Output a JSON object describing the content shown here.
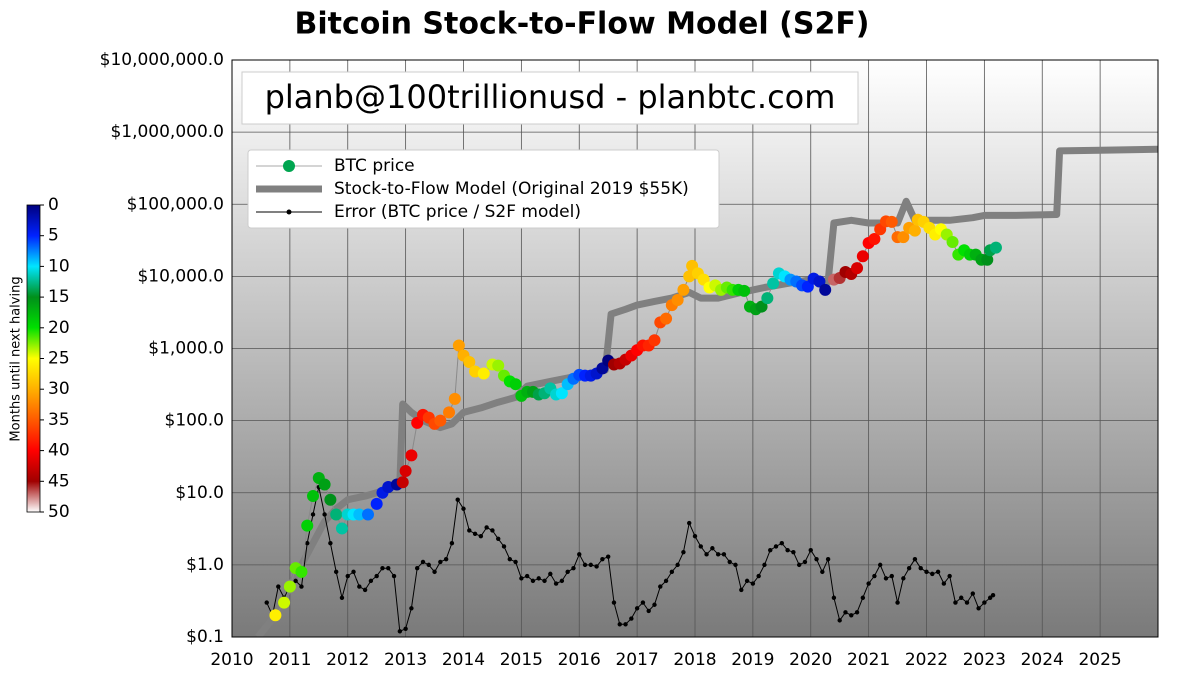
{
  "chart_data": {
    "type": "line",
    "title": "Bitcoin Stock-to-Flow Model (S2F)",
    "annotation": "planb@100trillionusd  -  planbtc.com",
    "log_y": true,
    "grid": true,
    "legend": "upper left",
    "xlim": [
      2010,
      2026
    ],
    "xticks": [
      2010,
      2011,
      2012,
      2013,
      2014,
      2015,
      2016,
      2017,
      2018,
      2019,
      2020,
      2021,
      2022,
      2023,
      2024,
      2025
    ],
    "ylim": [
      0.1,
      10000000
    ],
    "yticks": [
      {
        "value": 0.1,
        "label": "$0.1"
      },
      {
        "value": 1,
        "label": "$1.0"
      },
      {
        "value": 10,
        "label": "$10.0"
      },
      {
        "value": 100,
        "label": "$100.0"
      },
      {
        "value": 1000,
        "label": "$1,000.0"
      },
      {
        "value": 10000,
        "label": "$10,000.0"
      },
      {
        "value": 100000,
        "label": "$100,000.0"
      },
      {
        "value": 1000000,
        "label": "$1,000,000.0"
      },
      {
        "value": 10000000,
        "label": "$10,000,000.0"
      }
    ],
    "colorbar": {
      "label": "Months until next halving",
      "lim": [
        0,
        50
      ],
      "ticks": [
        0,
        5,
        10,
        15,
        20,
        25,
        30,
        35,
        40,
        45,
        50
      ],
      "colors": [
        "#00007f",
        "#0022ff",
        "#00e5ff",
        "#00901a",
        "#00e000",
        "#ffff00",
        "#ffb000",
        "#ff5a00",
        "#ff0000",
        "#a00000",
        "#ffffff"
      ]
    },
    "series": [
      {
        "name": "BTC price",
        "type": "scatter",
        "color": "#00a550",
        "x": [
          2010.75,
          2010.9,
          2011.0,
          2011.1,
          2011.2,
          2011.3,
          2011.4,
          2011.5,
          2011.6,
          2011.7,
          2011.8,
          2011.9,
          2012.0,
          2012.1,
          2012.2,
          2012.35,
          2012.5,
          2012.6,
          2012.7,
          2012.85,
          2012.95,
          2013.0,
          2013.1,
          2013.2,
          2013.3,
          2013.4,
          2013.5,
          2013.6,
          2013.75,
          2013.85,
          2013.92,
          2014.0,
          2014.1,
          2014.2,
          2014.35,
          2014.5,
          2014.6,
          2014.7,
          2014.8,
          2014.9,
          2015.0,
          2015.1,
          2015.2,
          2015.3,
          2015.4,
          2015.5,
          2015.6,
          2015.7,
          2015.8,
          2015.9,
          2016.0,
          2016.1,
          2016.2,
          2016.3,
          2016.4,
          2016.5,
          2016.6,
          2016.7,
          2016.8,
          2016.9,
          2017.0,
          2017.1,
          2017.2,
          2017.3,
          2017.4,
          2017.5,
          2017.6,
          2017.7,
          2017.8,
          2017.9,
          2017.95,
          2018.05,
          2018.15,
          2018.25,
          2018.35,
          2018.45,
          2018.55,
          2018.65,
          2018.75,
          2018.85,
          2018.95,
          2019.05,
          2019.15,
          2019.25,
          2019.35,
          2019.45,
          2019.55,
          2019.65,
          2019.75,
          2019.85,
          2019.95,
          2020.05,
          2020.15,
          2020.25,
          2020.4,
          2020.5,
          2020.6,
          2020.7,
          2020.8,
          2020.9,
          2021.0,
          2021.1,
          2021.2,
          2021.3,
          2021.4,
          2021.5,
          2021.6,
          2021.7,
          2021.8,
          2021.85,
          2021.95,
          2022.05,
          2022.15,
          2022.25,
          2022.35,
          2022.45,
          2022.55,
          2022.65,
          2022.75,
          2022.85,
          2022.95,
          2023.05,
          2023.1,
          2023.2
        ],
        "values": [
          0.2,
          0.3,
          0.5,
          0.9,
          0.8,
          3.5,
          9,
          16,
          13,
          8,
          5,
          3.2,
          5,
          5,
          5,
          5,
          7,
          10,
          12,
          13,
          14,
          20,
          33,
          93,
          120,
          110,
          90,
          100,
          130,
          200,
          1100,
          800,
          650,
          480,
          450,
          600,
          580,
          420,
          350,
          320,
          220,
          250,
          250,
          230,
          240,
          280,
          230,
          240,
          320,
          380,
          430,
          420,
          420,
          450,
          530,
          680,
          600,
          620,
          700,
          800,
          950,
          1100,
          1100,
          1300,
          2300,
          2600,
          4000,
          4700,
          6500,
          10000,
          14000,
          11000,
          9000,
          7000,
          7500,
          6500,
          7000,
          6500,
          6500,
          6300,
          3800,
          3500,
          3800,
          5000,
          8000,
          11000,
          10000,
          9000,
          8500,
          7500,
          7200,
          9300,
          8500,
          6500,
          9000,
          9500,
          11500,
          10800,
          13000,
          19000,
          29000,
          33000,
          45000,
          58000,
          57000,
          35000,
          35000,
          47000,
          43000,
          61000,
          57000,
          47000,
          38000,
          45000,
          38000,
          30000,
          20000,
          23000,
          20000,
          20000,
          17000,
          17000,
          23000,
          25000
        ],
        "months": [
          26,
          24,
          23,
          22,
          21,
          19,
          18,
          17,
          16,
          15,
          13,
          12,
          11,
          10,
          9,
          7,
          5,
          4,
          3,
          1,
          43,
          42,
          41,
          40,
          39,
          37,
          36,
          35,
          33,
          32,
          31,
          30,
          29,
          28,
          26,
          24,
          23,
          22,
          20,
          19,
          18,
          17,
          16,
          14,
          13,
          12,
          11,
          10,
          9,
          7,
          6,
          5,
          4,
          3,
          1,
          0,
          45,
          44,
          43,
          41,
          40,
          39,
          38,
          37,
          36,
          34,
          33,
          32,
          31,
          29,
          29,
          28,
          27,
          25,
          24,
          23,
          22,
          21,
          19,
          18,
          17,
          16,
          15,
          13,
          12,
          11,
          10,
          8,
          7,
          6,
          5,
          4,
          3,
          1,
          47,
          46,
          45,
          44,
          42,
          41,
          40,
          39,
          37,
          36,
          35,
          34,
          32,
          31,
          30,
          29,
          28,
          27,
          26,
          25,
          23,
          22,
          21,
          20,
          19,
          17,
          16,
          15,
          14,
          13
        ]
      },
      {
        "name": "Stock-to-Flow Model (Original 2019 $55K)",
        "type": "line",
        "color": "#808080",
        "x": [
          2010.45,
          2010.75,
          2011.0,
          2011.2,
          2011.4,
          2011.6,
          2011.8,
          2012.0,
          2012.3,
          2012.5,
          2012.75,
          2012.9,
          2012.95,
          2013.1,
          2013.3,
          2013.6,
          2013.8,
          2014.0,
          2014.3,
          2014.6,
          2014.9,
          2015.1,
          2015.5,
          2016.0,
          2016.45,
          2016.55,
          2016.8,
          2017.0,
          2017.3,
          2017.6,
          2017.9,
          2018.1,
          2018.4,
          2018.8,
          2019.2,
          2019.6,
          2020.0,
          2020.3,
          2020.4,
          2020.7,
          2021.0,
          2021.3,
          2021.5,
          2021.65,
          2021.8,
          2022.0,
          2022.4,
          2022.8,
          2023.0,
          2023.5,
          2024.25,
          2024.3,
          2025.0,
          2026.0
        ],
        "values": [
          0.1,
          0.2,
          0.5,
          1,
          2,
          4,
          6,
          8,
          9,
          10,
          12,
          13,
          170,
          130,
          100,
          80,
          90,
          130,
          150,
          180,
          210,
          300,
          350,
          420,
          500,
          3000,
          3500,
          4000,
          4500,
          5000,
          6000,
          5000,
          5000,
          6000,
          7000,
          8000,
          9000,
          8500,
          55000,
          60000,
          55000,
          55000,
          55000,
          110000,
          60000,
          60000,
          60000,
          65000,
          70000,
          70000,
          72000,
          550000,
          560000,
          580000
        ]
      },
      {
        "name": "Error (BTC price / S2F model)",
        "type": "line-dots",
        "color": "#000000",
        "x": [
          2010.6,
          2010.7,
          2010.8,
          2010.9,
          2011.0,
          2011.1,
          2011.2,
          2011.3,
          2011.4,
          2011.5,
          2011.6,
          2011.7,
          2011.8,
          2011.9,
          2012.0,
          2012.1,
          2012.2,
          2012.3,
          2012.4,
          2012.5,
          2012.6,
          2012.7,
          2012.8,
          2012.9,
          2013.0,
          2013.1,
          2013.2,
          2013.3,
          2013.4,
          2013.5,
          2013.6,
          2013.7,
          2013.8,
          2013.9,
          2014.0,
          2014.1,
          2014.2,
          2014.3,
          2014.4,
          2014.5,
          2014.6,
          2014.7,
          2014.8,
          2014.9,
          2015.0,
          2015.1,
          2015.2,
          2015.3,
          2015.4,
          2015.5,
          2015.6,
          2015.7,
          2015.8,
          2015.9,
          2016.0,
          2016.1,
          2016.2,
          2016.3,
          2016.4,
          2016.5,
          2016.6,
          2016.7,
          2016.8,
          2016.9,
          2017.0,
          2017.1,
          2017.2,
          2017.3,
          2017.4,
          2017.5,
          2017.6,
          2017.7,
          2017.8,
          2017.9,
          2018.0,
          2018.1,
          2018.2,
          2018.3,
          2018.4,
          2018.5,
          2018.6,
          2018.7,
          2018.8,
          2018.9,
          2019.0,
          2019.1,
          2019.2,
          2019.3,
          2019.4,
          2019.5,
          2019.6,
          2019.7,
          2019.8,
          2019.9,
          2020.0,
          2020.1,
          2020.2,
          2020.3,
          2020.4,
          2020.5,
          2020.6,
          2020.7,
          2020.8,
          2020.9,
          2021.0,
          2021.1,
          2021.2,
          2021.3,
          2021.4,
          2021.5,
          2021.6,
          2021.7,
          2021.8,
          2021.9,
          2022.0,
          2022.1,
          2022.2,
          2022.3,
          2022.4,
          2022.5,
          2022.6,
          2022.7,
          2022.8,
          2022.9,
          2023.0,
          2023.1,
          2023.15
        ],
        "values": [
          0.3,
          0.2,
          0.5,
          0.35,
          0.5,
          0.6,
          0.5,
          2,
          5,
          12,
          5,
          2,
          0.8,
          0.35,
          0.7,
          0.8,
          0.5,
          0.45,
          0.6,
          0.7,
          0.9,
          0.9,
          0.7,
          0.12,
          0.13,
          0.25,
          0.9,
          1.1,
          1,
          0.8,
          1.1,
          1.2,
          2,
          8,
          6,
          3,
          2.7,
          2.5,
          3.3,
          3,
          2.3,
          1.8,
          1.2,
          1.1,
          0.65,
          0.7,
          0.6,
          0.65,
          0.6,
          0.75,
          0.55,
          0.6,
          0.8,
          0.9,
          1.4,
          1,
          1,
          0.95,
          1.2,
          1.3,
          0.3,
          0.15,
          0.15,
          0.18,
          0.25,
          0.3,
          0.23,
          0.28,
          0.5,
          0.6,
          0.8,
          1,
          1.5,
          3.8,
          2.5,
          1.8,
          1.4,
          1.7,
          1.4,
          1.4,
          1.1,
          1,
          0.45,
          0.6,
          0.55,
          0.7,
          1,
          1.6,
          1.8,
          2,
          1.6,
          1.5,
          1,
          1.1,
          1.6,
          1.2,
          0.8,
          1.2,
          0.35,
          0.17,
          0.22,
          0.2,
          0.22,
          0.35,
          0.55,
          0.7,
          1,
          0.65,
          0.7,
          0.3,
          0.65,
          0.9,
          1.2,
          0.9,
          0.8,
          0.75,
          0.8,
          0.55,
          0.7,
          0.3,
          0.35,
          0.3,
          0.4,
          0.25,
          0.3,
          0.35,
          0.38
        ]
      }
    ]
  }
}
